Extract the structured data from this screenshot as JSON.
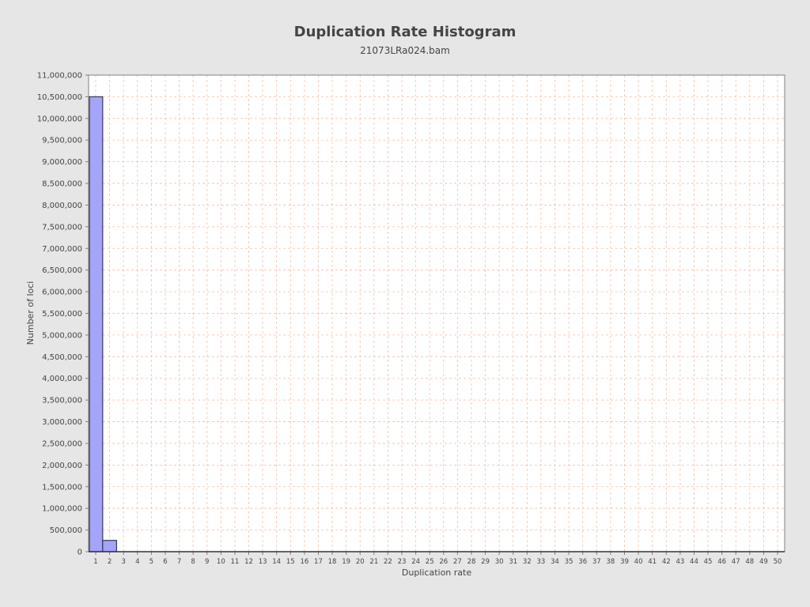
{
  "chart_data": {
    "type": "bar",
    "title": "Duplication Rate Histogram",
    "subtitle": "21073LRa024.bam",
    "xlabel": "Duplication rate",
    "ylabel": "Number of loci",
    "categories": [
      "1",
      "2",
      "3",
      "4",
      "5",
      "6",
      "7",
      "8",
      "9",
      "10",
      "11",
      "12",
      "13",
      "14",
      "15",
      "16",
      "17",
      "18",
      "19",
      "20",
      "21",
      "22",
      "23",
      "24",
      "25",
      "26",
      "27",
      "28",
      "29",
      "30",
      "31",
      "32",
      "33",
      "34",
      "35",
      "36",
      "37",
      "38",
      "39",
      "40",
      "41",
      "42",
      "43",
      "44",
      "45",
      "46",
      "47",
      "48",
      "49",
      "50"
    ],
    "values": [
      10500000,
      260000,
      0,
      0,
      0,
      0,
      0,
      0,
      0,
      0,
      0,
      0,
      0,
      0,
      0,
      0,
      0,
      0,
      0,
      0,
      0,
      0,
      0,
      0,
      0,
      0,
      0,
      0,
      0,
      0,
      0,
      0,
      0,
      0,
      0,
      0,
      0,
      0,
      0,
      0,
      0,
      0,
      0,
      0,
      0,
      0,
      0,
      0,
      0,
      0
    ],
    "ylim": [
      0,
      11000000
    ],
    "y_ticks": [
      "0",
      "500,000",
      "1,000,000",
      "1,500,000",
      "2,000,000",
      "2,500,000",
      "3,000,000",
      "3,500,000",
      "4,000,000",
      "4,500,000",
      "5,000,000",
      "5,500,000",
      "6,000,000",
      "6,500,000",
      "7,000,000",
      "7,500,000",
      "8,000,000",
      "8,500,000",
      "9,000,000",
      "9,500,000",
      "10,000,000",
      "10,500,000",
      "11,000,000"
    ],
    "grid": true,
    "legend": "none",
    "colors": {
      "bar_fill": "#a4a4f8",
      "bar_stroke": "#3a3a5a",
      "grid": "#f0c0a8",
      "plot_background": "#ffffff",
      "page_background": "#e6e6e6"
    }
  }
}
